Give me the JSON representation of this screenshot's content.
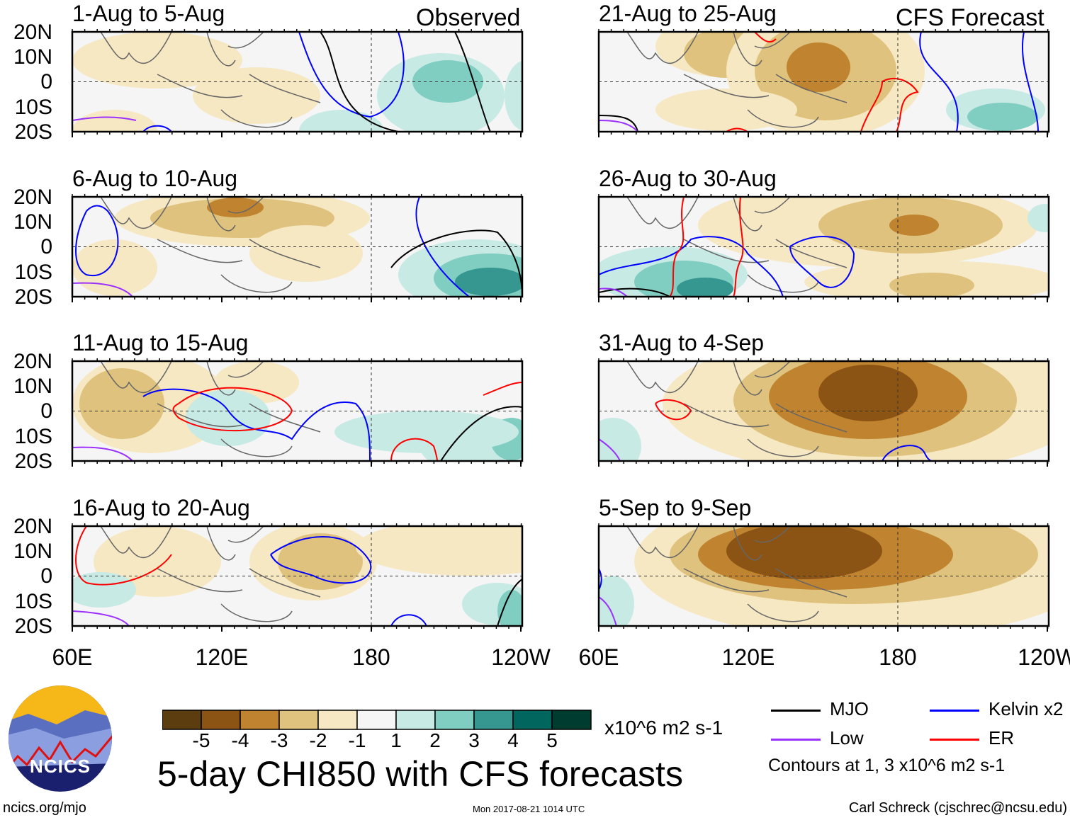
{
  "chart_data": {
    "type": "heatmap",
    "title": "5-day CHI850 with CFS forecasts",
    "units": "x10^6 m2 s-1",
    "contour_note": "Contours at 1, 3 x10^6 m2 s-1",
    "colorbar": {
      "levels": [
        "-5",
        "-4",
        "-3",
        "-2",
        "-1",
        "1",
        "2",
        "3",
        "4",
        "5"
      ],
      "colors": [
        "#5c3d10",
        "#8c5414",
        "#c0832f",
        "#dfc27d",
        "#f6e8c3",
        "#f5f5f5",
        "#c7eae5",
        "#80cdc1",
        "#35978f",
        "#01665e",
        "#003c30"
      ]
    },
    "legend": [
      {
        "name": "MJO",
        "color": "#000000"
      },
      {
        "name": "Kelvin x2",
        "color": "#0000ff"
      },
      {
        "name": "Low",
        "color": "#9b30ff"
      },
      {
        "name": "ER",
        "color": "#ff0000"
      }
    ],
    "x_ticks": [
      "60E",
      "120E",
      "180",
      "120W"
    ],
    "y_ticks": [
      "20N",
      "10N",
      "0",
      "10S",
      "20S"
    ],
    "columns": [
      {
        "label": "Observed",
        "panels": [
          "1-Aug to 5-Aug",
          "6-Aug to 10-Aug",
          "11-Aug to 15-Aug",
          "16-Aug to 20-Aug"
        ]
      },
      {
        "label": "CFS Forecast",
        "panels": [
          "21-Aug to 25-Aug",
          "26-Aug to 30-Aug",
          "31-Aug to 4-Sep",
          "5-Sep to 9-Sep"
        ]
      }
    ]
  },
  "footer": {
    "logo_text": "NCICS",
    "website": "ncics.org/mjo",
    "timestamp": "Mon 2017-08-21 1014 UTC",
    "author": "Carl Schreck (cjschrec@ncsu.edu)"
  }
}
